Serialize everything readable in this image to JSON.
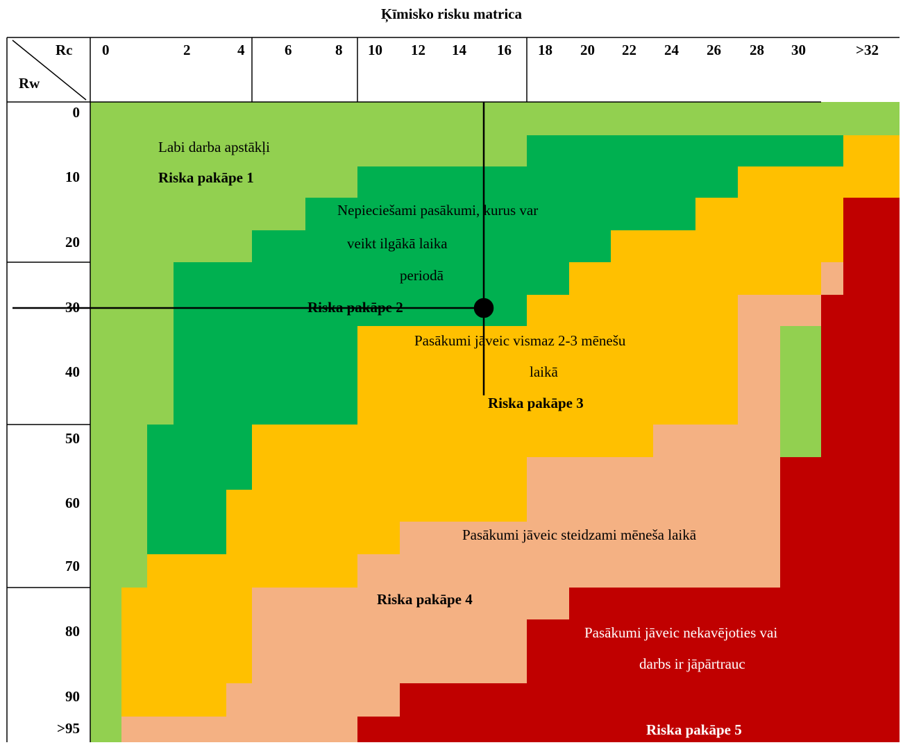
{
  "title": "Ķīmisko risku matrica",
  "axis": {
    "column_axis_label": "Rc",
    "row_axis_label": "Rw"
  },
  "rc_ticks": [
    "0",
    "2",
    "4",
    "6",
    "8",
    "10",
    "12",
    "14",
    "16",
    "18",
    "20",
    "22",
    "24",
    "26",
    "28",
    "30",
    ">32"
  ],
  "rw_ticks": [
    "0",
    "10",
    "20",
    "30",
    "40",
    "50",
    "60",
    "70",
    "80",
    "90",
    ">95"
  ],
  "levels": {
    "level1": {
      "description": "Labi darba apstākļi",
      "name": "Riska pakāpe 1"
    },
    "level2": {
      "description_line1": "Nepieciešami pasākumi, kurus var",
      "description_line2": "veikt ilgākā laika",
      "description_line3": "periodā",
      "name": "Riska pakāpe 2"
    },
    "level3": {
      "description_line1": "Pasākumi jāveic vismaz 2-3 mēnešu",
      "description_line2": "laikā",
      "name": "Riska pakāpe 3"
    },
    "level4": {
      "description": "Pasākumi jāveic steidzami mēneša laikā",
      "name": "Riska pakāpe 4"
    },
    "level5": {
      "description_line1": "Pasākumi jāveic nekavējoties vai",
      "description_line2": "darbs ir jāpārtrauc",
      "name": "Riska pakāpe 5"
    }
  },
  "example_point": {
    "rc": 16,
    "rw": 30
  },
  "colors": {
    "level1": "#92D050",
    "level2": "#00B050",
    "level3": "#FFC000",
    "level4": "#F4B183",
    "level5": "#C00000"
  }
}
